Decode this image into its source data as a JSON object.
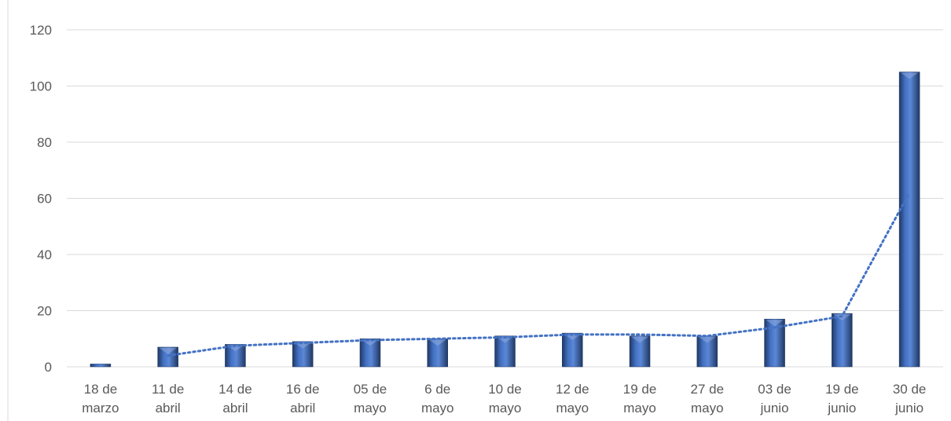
{
  "chart_data": {
    "type": "bar",
    "title": "",
    "xlabel": "",
    "ylabel": "",
    "ylim": [
      0,
      120
    ],
    "yticks": [
      0,
      20,
      40,
      60,
      80,
      100,
      120
    ],
    "grid": true,
    "categories": [
      [
        "18 de",
        "marzo"
      ],
      [
        "11 de",
        "abril"
      ],
      [
        "14 de",
        "abril"
      ],
      [
        "16 de",
        "abril"
      ],
      [
        "05 de",
        "mayo"
      ],
      [
        "6 de",
        "mayo"
      ],
      [
        "10 de",
        "mayo"
      ],
      [
        "12 de",
        "mayo"
      ],
      [
        "19 de",
        "mayo"
      ],
      [
        "27 de",
        "mayo"
      ],
      [
        "03 de",
        "junio"
      ],
      [
        "19 de",
        "junio"
      ],
      [
        "30 de",
        "junio"
      ]
    ],
    "series": [
      {
        "type": "bar",
        "values": [
          1,
          7,
          8,
          9,
          10,
          10,
          11,
          12,
          11,
          11,
          17,
          19,
          105
        ],
        "color": "#2F5597"
      },
      {
        "type": "line",
        "style": "dotted",
        "values": [
          null,
          4,
          7.5,
          8.5,
          9.5,
          10,
          10.5,
          11.5,
          11.5,
          11,
          14,
          18,
          62
        ],
        "color": "#4472C4"
      }
    ]
  }
}
